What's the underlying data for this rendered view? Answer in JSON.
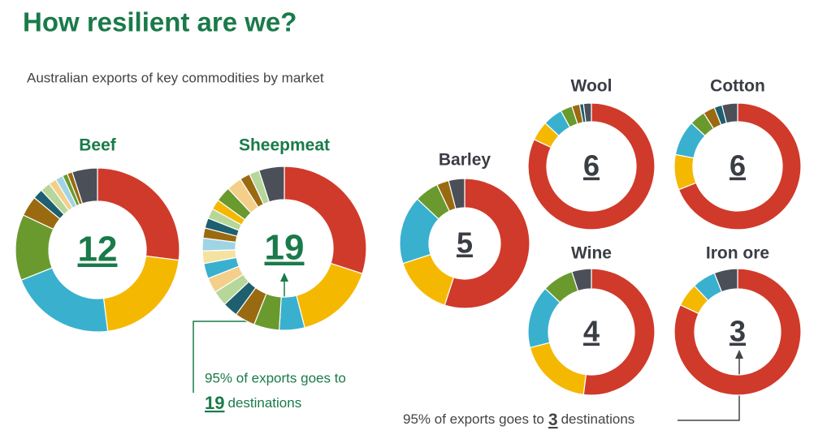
{
  "title": "How resilient are we?",
  "subtitle": "Australian exports of key commodities by market",
  "chart_data": [
    {
      "type": "pie",
      "title": "Beef",
      "center": 12,
      "values": [
        27,
        21,
        21,
        13,
        4,
        2,
        2,
        1.5,
        1.5,
        1,
        1,
        5
      ],
      "colors": [
        "#d03a2a",
        "#f5b800",
        "#3ab0cf",
        "#6a9a2e",
        "#9a6a10",
        "#1e5f70",
        "#b7d79a",
        "#f3cf8a",
        "#9ed4e6",
        "#6a9a2e",
        "#9a6a10",
        "#4a4f58"
      ]
    },
    {
      "type": "pie",
      "title": "Sheepmeat",
      "center": 19,
      "values": [
        30,
        16,
        5,
        5,
        4,
        3,
        3,
        3,
        3,
        2.5,
        2.5,
        2,
        2,
        2,
        2,
        3,
        3,
        2,
        2,
        5
      ],
      "colors": [
        "#d03a2a",
        "#f5b800",
        "#3ab0cf",
        "#6a9a2e",
        "#9a6a10",
        "#1e5f70",
        "#b7d79a",
        "#f3cf8a",
        "#3ab0cf",
        "#f6e2a0",
        "#9ed4e6",
        "#9a6a10",
        "#1e5f70",
        "#b7d79a",
        "#f5b800",
        "#6a9a2e",
        "#f3cf8a",
        "#9a6a10",
        "#b7d79a",
        "#4a4f58"
      ]
    },
    {
      "type": "pie",
      "title": "Barley",
      "center": 5,
      "values": [
        55,
        15,
        17,
        6,
        3,
        4
      ],
      "colors": [
        "#d03a2a",
        "#f5b800",
        "#3ab0cf",
        "#6a9a2e",
        "#9a6a10",
        "#4a4f58"
      ]
    },
    {
      "type": "pie",
      "title": "Wool",
      "center": 6,
      "values": [
        82,
        5,
        5,
        3,
        2,
        1,
        2
      ],
      "colors": [
        "#d03a2a",
        "#f5b800",
        "#3ab0cf",
        "#6a9a2e",
        "#9a6a10",
        "#1e5f70",
        "#4a4f58"
      ]
    },
    {
      "type": "pie",
      "title": "Cotton",
      "center": 6,
      "values": [
        69,
        9,
        9,
        4,
        3,
        2,
        4
      ],
      "colors": [
        "#d03a2a",
        "#f5b800",
        "#3ab0cf",
        "#6a9a2e",
        "#9a6a10",
        "#1e5f70",
        "#4a4f58"
      ]
    },
    {
      "type": "pie",
      "title": "Wine",
      "center": 4,
      "values": [
        52,
        19,
        16,
        8,
        5
      ],
      "colors": [
        "#d03a2a",
        "#f5b800",
        "#3ab0cf",
        "#6a9a2e",
        "#4a4f58"
      ]
    },
    {
      "type": "pie",
      "title": "Iron ore",
      "center": 3,
      "values": [
        82,
        6,
        6,
        6
      ],
      "colors": [
        "#d03a2a",
        "#f5b800",
        "#3ab0cf",
        "#4a4f58"
      ]
    }
  ],
  "annotations": [
    {
      "text": "95% of exports goes to",
      "number": 19,
      "suffix": "destinations"
    },
    {
      "text": "95% of exports goes to",
      "number": 3,
      "suffix": "destinations"
    }
  ]
}
